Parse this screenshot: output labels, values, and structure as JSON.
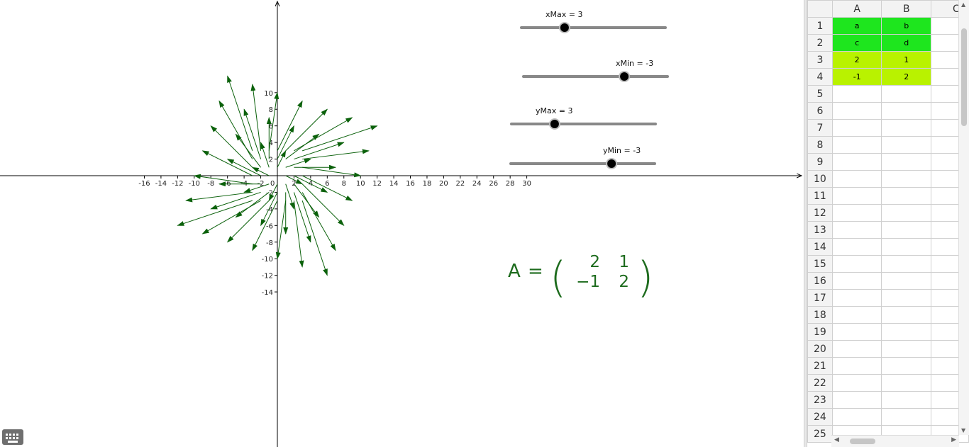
{
  "graph": {
    "x_ticks": [
      -16,
      -14,
      -12,
      -10,
      -8,
      -6,
      -4,
      -2,
      0,
      2,
      4,
      6,
      8,
      10,
      12,
      14,
      16,
      18,
      20,
      22,
      24,
      26,
      28,
      30
    ],
    "y_ticks": [
      10,
      8,
      6,
      4,
      2,
      -2,
      -4,
      -6,
      -8,
      -10,
      -12,
      -14
    ],
    "vector_color": "#0b610b",
    "vectors": [
      {
        "x": 0,
        "y": 0,
        "dx": 2,
        "dy": -1
      },
      {
        "x": -1,
        "y": -1,
        "dx": -1,
        "dy": -1
      },
      {
        "x": -2,
        "y": -2,
        "dx": -2,
        "dy": -2
      }
    ]
  },
  "sliders": [
    {
      "name": "xMax",
      "label": "xMax = 3",
      "value": 3,
      "min": 0,
      "max": 10
    },
    {
      "name": "xMin",
      "label": "xMin = -3",
      "value": -3,
      "min": -10,
      "max": 0
    },
    {
      "name": "yMax",
      "label": "yMax = 3",
      "value": 3,
      "min": 0,
      "max": 10
    },
    {
      "name": "yMin",
      "label": "yMin = -3",
      "value": -3,
      "min": -10,
      "max": 0
    }
  ],
  "matrix": {
    "label": "A",
    "eq": "=",
    "rows": [
      [
        "2",
        "1"
      ],
      [
        "−1",
        "2"
      ]
    ]
  },
  "spreadsheet": {
    "col_headers": [
      "A",
      "B",
      "C"
    ],
    "rows": [
      {
        "num": "1",
        "a": "a",
        "b": "b",
        "style": "green"
      },
      {
        "num": "2",
        "a": "c",
        "b": "d",
        "style": "green"
      },
      {
        "num": "3",
        "a": "2",
        "b": "1",
        "style": "lime"
      },
      {
        "num": "4",
        "a": "-1",
        "b": "2",
        "style": "lime"
      },
      {
        "num": "5",
        "a": "",
        "b": "",
        "style": ""
      },
      {
        "num": "6",
        "a": "",
        "b": "",
        "style": ""
      },
      {
        "num": "7",
        "a": "",
        "b": "",
        "style": ""
      },
      {
        "num": "8",
        "a": "",
        "b": "",
        "style": ""
      },
      {
        "num": "9",
        "a": "",
        "b": "",
        "style": ""
      },
      {
        "num": "10",
        "a": "",
        "b": "",
        "style": ""
      },
      {
        "num": "11",
        "a": "",
        "b": "",
        "style": ""
      },
      {
        "num": "12",
        "a": "",
        "b": "",
        "style": ""
      },
      {
        "num": "13",
        "a": "",
        "b": "",
        "style": ""
      },
      {
        "num": "14",
        "a": "",
        "b": "",
        "style": ""
      },
      {
        "num": "15",
        "a": "",
        "b": "",
        "style": ""
      },
      {
        "num": "16",
        "a": "",
        "b": "",
        "style": ""
      },
      {
        "num": "17",
        "a": "",
        "b": "",
        "style": ""
      },
      {
        "num": "18",
        "a": "",
        "b": "",
        "style": ""
      },
      {
        "num": "19",
        "a": "",
        "b": "",
        "style": ""
      },
      {
        "num": "20",
        "a": "",
        "b": "",
        "style": ""
      },
      {
        "num": "21",
        "a": "",
        "b": "",
        "style": ""
      },
      {
        "num": "22",
        "a": "",
        "b": "",
        "style": ""
      },
      {
        "num": "23",
        "a": "",
        "b": "",
        "style": ""
      },
      {
        "num": "24",
        "a": "",
        "b": "",
        "style": ""
      },
      {
        "num": "25",
        "a": "",
        "b": "",
        "style": ""
      }
    ]
  },
  "icons": {
    "keyboard": "keyboard-icon"
  }
}
